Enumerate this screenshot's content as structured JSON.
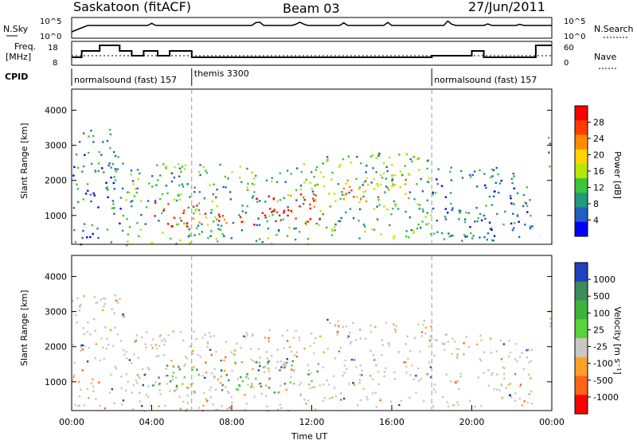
{
  "header": {
    "station": "Saskatoon (fitACF)",
    "beam": "Beam 03",
    "date": "27/Jun/2011"
  },
  "top_panels": {
    "nsky_label": "N.Sky",
    "nsky_ticks": [
      "10^5",
      "10^0"
    ],
    "nsearch_label": "N.Search",
    "nsearch_ticks": [
      "10^5",
      "10^0"
    ],
    "freq_label_1": "Freq.",
    "freq_label_2": "[MHz]",
    "freq_ticks": [
      "18",
      "8"
    ],
    "nave_label": "Nave",
    "nave_ticks": [
      "60",
      "0"
    ],
    "cpid_label": "CPID",
    "cpid_segments": [
      {
        "label": "normalsound (fast) 157",
        "start": 0.0
      },
      {
        "label": "themis 3300",
        "start": 6.0
      },
      {
        "label": "normalsound (fast) 157",
        "start": 18.0
      }
    ]
  },
  "chart_data": [
    {
      "type": "heatmap",
      "name": "power",
      "xlabel": "Time UT",
      "ylabel": "Slant Range [km]",
      "xlim": [
        0,
        24
      ],
      "ylim": [
        180,
        4600
      ],
      "yticks": [
        1000,
        2000,
        3000,
        4000
      ],
      "ytick_labels": [
        "1000",
        "2000",
        "3000",
        "4000"
      ],
      "colorbar_label": "Power [dB]",
      "colorbar_ticks": [
        "28",
        "24",
        "20",
        "16",
        "12",
        "8",
        "4"
      ],
      "colorbar_colors": [
        "#ff0000",
        "#ff3c00",
        "#ff8a00",
        "#ffd400",
        "#b8e600",
        "#3cc43c",
        "#1f9a7a",
        "#2060c0",
        "#0000ff"
      ],
      "regions": [
        {
          "x0": 0.0,
          "x1": 2.6,
          "y0": 180,
          "y1": 3500,
          "level": 0.25
        },
        {
          "x0": 2.6,
          "x1": 12.5,
          "y0": 180,
          "y1": 2500,
          "level": 0.35
        },
        {
          "x0": 4.0,
          "x1": 6.8,
          "y0": 700,
          "y1": 1400,
          "level": 0.85
        },
        {
          "x0": 7.3,
          "x1": 8.6,
          "y0": 700,
          "y1": 1300,
          "level": 0.9
        },
        {
          "x0": 8.9,
          "x1": 12.4,
          "y0": 650,
          "y1": 1650,
          "level": 0.95
        },
        {
          "x0": 12.5,
          "x1": 18.0,
          "y0": 300,
          "y1": 2800,
          "level": 0.35
        },
        {
          "x0": 13.5,
          "x1": 16.8,
          "y0": 1400,
          "y1": 2200,
          "level": 0.6
        },
        {
          "x0": 18.0,
          "x1": 23.0,
          "y0": 300,
          "y1": 2400,
          "level": 0.25
        },
        {
          "x0": 23.8,
          "x1": 24.0,
          "y0": 2200,
          "y1": 3500,
          "level": 0.3
        }
      ]
    },
    {
      "type": "heatmap",
      "name": "velocity",
      "xlabel": "Time UT",
      "ylabel": "Slant Range [km]",
      "xlim": [
        0,
        24
      ],
      "ylim": [
        180,
        4600
      ],
      "yticks": [
        1000,
        2000,
        3000,
        4000
      ],
      "ytick_labels": [
        "1000",
        "2000",
        "3000",
        "4000"
      ],
      "xticks": [
        0,
        4,
        8,
        12,
        16,
        20,
        24
      ],
      "xtick_labels": [
        "00:00",
        "04:00",
        "08:00",
        "12:00",
        "16:00",
        "20:00",
        "00:00"
      ],
      "colorbar_label": "Velocity [m s⁻¹]",
      "colorbar_ticks": [
        "1000",
        "500",
        "100",
        "25",
        "-25",
        "-100",
        "-500",
        "-1000"
      ],
      "colorbar_colors": [
        "#2040c0",
        "#3c8c5a",
        "#3cb43c",
        "#5ad23c",
        "#c8c8c0",
        "#ffa028",
        "#ff6414",
        "#ff0000"
      ],
      "regions": [
        {
          "x0": 0.0,
          "x1": 2.6,
          "y0": 180,
          "y1": 3500,
          "level": "ground"
        },
        {
          "x0": 2.6,
          "x1": 12.5,
          "y0": 180,
          "y1": 2500,
          "level": "ground"
        },
        {
          "x0": 4.0,
          "x1": 6.8,
          "y0": 700,
          "y1": 1500,
          "level": "positive"
        },
        {
          "x0": 7.3,
          "x1": 12.3,
          "y0": 650,
          "y1": 1650,
          "level": "positive"
        },
        {
          "x0": 12.5,
          "x1": 18.0,
          "y0": 300,
          "y1": 2800,
          "level": "ground"
        },
        {
          "x0": 18.0,
          "x1": 23.0,
          "y0": 300,
          "y1": 2400,
          "level": "ground"
        },
        {
          "x0": 23.8,
          "x1": 24.0,
          "y0": 2200,
          "y1": 3500,
          "level": "ground"
        }
      ]
    }
  ]
}
